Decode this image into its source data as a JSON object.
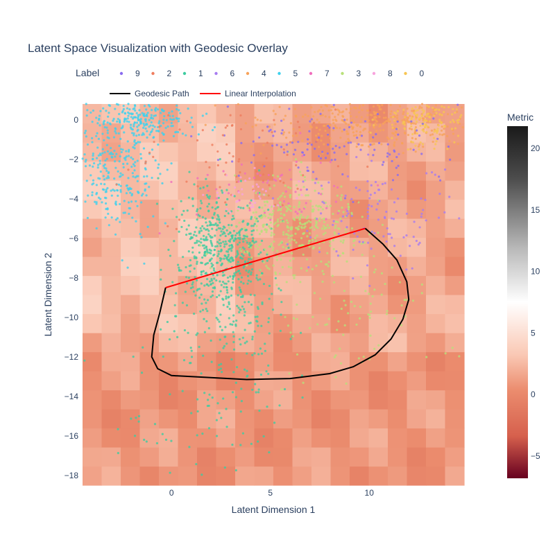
{
  "chart_data": {
    "type": "scatter",
    "title": "Latent Space Visualization with Geodesic Overlay",
    "xlabel": "Latent Dimension 1",
    "ylabel": "Latent Dimension 2",
    "xlim": [
      -4.5,
      14.8
    ],
    "ylim": [
      -18.5,
      0.8
    ],
    "x_ticks": [
      0,
      5,
      10
    ],
    "y_ticks": [
      0,
      -2,
      -4,
      -6,
      -8,
      -10,
      -12,
      -14,
      -16,
      -18
    ],
    "grid": false,
    "legend": {
      "title": "Label",
      "placement": "top",
      "entries": [
        {
          "name": "9",
          "color": "#8a6cf0"
        },
        {
          "name": "2",
          "color": "#ef7d5e"
        },
        {
          "name": "1",
          "color": "#3fcca0"
        },
        {
          "name": "6",
          "color": "#a77cf0"
        },
        {
          "name": "4",
          "color": "#f7a35a"
        },
        {
          "name": "5",
          "color": "#3ed1ee"
        },
        {
          "name": "7",
          "color": "#f06fbd"
        },
        {
          "name": "3",
          "color": "#b8e07a"
        },
        {
          "name": "8",
          "color": "#f7a4de"
        },
        {
          "name": "0",
          "color": "#f7c553"
        }
      ]
    },
    "line_legend": [
      {
        "name": "Geodesic Path",
        "color": "#000000"
      },
      {
        "name": "Linear Interpolation",
        "color": "#ff0000"
      }
    ],
    "background_metric": {
      "x_range": [
        -4.5,
        14.8
      ],
      "y_range": [
        -18.5,
        0.8
      ],
      "cols": 20,
      "rows": 20,
      "note_values": "metric heatmap cells; values mostly between 0 and 4"
    },
    "colorbar": {
      "title": "Metric",
      "min": -6.8,
      "max": 21.8,
      "ticks": [
        -5,
        0,
        5,
        10,
        15,
        20
      ],
      "colors": [
        "#67001f",
        "#d6604d",
        "#f4a582",
        "#ffffff",
        "#bababa",
        "#4d4d4d",
        "#1a1a1a"
      ]
    },
    "clusters": [
      {
        "label": "5",
        "color": "#3ed1ee",
        "cx": -1.5,
        "cy": 0.0,
        "sx": 1.3,
        "sy": 0.6,
        "n": 240
      },
      {
        "label": "5",
        "color": "#3ed1ee",
        "cx": -3.0,
        "cy": -2.8,
        "sx": 1.1,
        "sy": 1.4,
        "n": 260
      },
      {
        "label": "1",
        "color": "#3fcca0",
        "cx": 2.4,
        "cy": -6.4,
        "sx": 1.1,
        "sy": 1.5,
        "n": 480
      },
      {
        "label": "1",
        "color": "#3fcca0",
        "cx": 3.5,
        "cy": -10.5,
        "sx": 1.5,
        "sy": 1.9,
        "n": 180
      },
      {
        "label": "1",
        "color": "#3fcca0",
        "cx": 1.0,
        "cy": -14.5,
        "sx": 2.5,
        "sy": 1.8,
        "n": 70
      },
      {
        "label": "3",
        "color": "#b8e07a",
        "cx": 6.2,
        "cy": -5.3,
        "sx": 1.6,
        "sy": 1.1,
        "n": 380
      },
      {
        "label": "3",
        "color": "#b8e07a",
        "cx": 9.5,
        "cy": -10.0,
        "sx": 2.2,
        "sy": 1.6,
        "n": 90
      },
      {
        "label": "4",
        "color": "#f7a35a",
        "cx": 10.5,
        "cy": 0.0,
        "sx": 3.0,
        "sy": 0.7,
        "n": 460
      },
      {
        "label": "0",
        "color": "#f7c553",
        "cx": 13.0,
        "cy": 0.0,
        "sx": 1.2,
        "sy": 0.6,
        "n": 140
      },
      {
        "label": "9",
        "color": "#8a6cf0",
        "cx": 8.5,
        "cy": -1.2,
        "sx": 3.0,
        "sy": 1.2,
        "n": 130
      },
      {
        "label": "6",
        "color": "#a77cf0",
        "cx": 10.5,
        "cy": -4.8,
        "sx": 2.2,
        "sy": 1.3,
        "n": 120
      },
      {
        "label": "7",
        "color": "#f06fbd",
        "cx": 5.0,
        "cy": -3.5,
        "sx": 2.0,
        "sy": 1.0,
        "n": 60
      },
      {
        "label": "2",
        "color": "#ef7d5e",
        "cx": 4.0,
        "cy": -2.0,
        "sx": 3.0,
        "sy": 1.5,
        "n": 80
      },
      {
        "label": "8",
        "color": "#f7a4de",
        "cx": 4.0,
        "cy": -3.6,
        "sx": 1.0,
        "sy": 0.6,
        "n": 40
      }
    ],
    "geodesic_path": [
      [
        9.8,
        -5.5
      ],
      [
        10.7,
        -6.3
      ],
      [
        11.4,
        -7.1
      ],
      [
        11.9,
        -8.2
      ],
      [
        12.0,
        -9.1
      ],
      [
        11.7,
        -10.1
      ],
      [
        11.1,
        -11.1
      ],
      [
        10.3,
        -11.9
      ],
      [
        9.2,
        -12.5
      ],
      [
        8.0,
        -12.85
      ],
      [
        6.0,
        -13.1
      ],
      [
        3.8,
        -13.15
      ],
      [
        1.0,
        -13.0
      ],
      [
        0.0,
        -12.95
      ],
      [
        -0.7,
        -12.6
      ],
      [
        -1.0,
        -12.0
      ],
      [
        -0.9,
        -10.9
      ],
      [
        -0.6,
        -9.8
      ],
      [
        -0.3,
        -8.5
      ]
    ],
    "linear_interpolation": [
      [
        -0.3,
        -8.5
      ],
      [
        9.8,
        -5.5
      ]
    ]
  }
}
